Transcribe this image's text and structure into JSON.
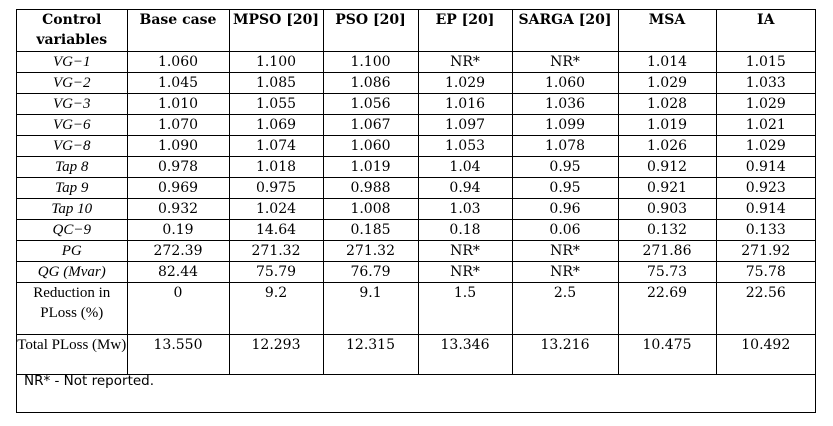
{
  "header": [
    "Control variables",
    "Base case",
    "MPSO [20]",
    "PSO [20]",
    "EP [20]",
    "SARGA [20]",
    "MSA",
    "IA"
  ],
  "rows": [
    {
      "label": "VG−1",
      "italic": true,
      "values": [
        "1.060",
        "1.100",
        "1.100",
        "NR*",
        "NR*",
        "1.014",
        "1.015"
      ]
    },
    {
      "label": "VG−2",
      "italic": true,
      "values": [
        "1.045",
        "1.085",
        "1.086",
        "1.029",
        "1.060",
        "1.029",
        "1.033"
      ]
    },
    {
      "label": "VG−3",
      "italic": true,
      "values": [
        "1.010",
        "1.055",
        "1.056",
        "1.016",
        "1.036",
        "1.028",
        "1.029"
      ]
    },
    {
      "label": "VG−6",
      "italic": true,
      "values": [
        "1.070",
        "1.069",
        "1.067",
        "1.097",
        "1.099",
        "1.019",
        "1.021"
      ]
    },
    {
      "label": "VG−8",
      "italic": true,
      "values": [
        "1.090",
        "1.074",
        "1.060",
        "1.053",
        "1.078",
        "1.026",
        "1.029"
      ]
    },
    {
      "label": "Tap 8",
      "italic": true,
      "values": [
        "0.978",
        "1.018",
        "1.019",
        "1.04",
        "0.95",
        "0.912",
        "0.914"
      ]
    },
    {
      "label": "Tap 9",
      "italic": true,
      "values": [
        "0.969",
        "0.975",
        "0.988",
        "0.94",
        "0.95",
        "0.921",
        "0.923"
      ]
    },
    {
      "label": "Tap 10",
      "italic": true,
      "values": [
        "0.932",
        "1.024",
        "1.008",
        "1.03",
        "0.96",
        "0.903",
        "0.914"
      ]
    },
    {
      "label": "QC−9",
      "italic": true,
      "values": [
        "0.19",
        "14.64",
        "0.185",
        "0.18",
        "0.06",
        "0.132",
        "0.133"
      ]
    },
    {
      "label": "PG",
      "italic": true,
      "values": [
        "272.39",
        "271.32",
        "271.32",
        "NR*",
        "NR*",
        "271.86",
        "271.92"
      ]
    },
    {
      "label": "QG (Mvar)",
      "italic": true,
      "values": [
        "82.44",
        "75.79",
        "76.79",
        "NR*",
        "NR*",
        "75.73",
        "75.78"
      ]
    },
    {
      "label": "Reduction in PLoss (%)",
      "italic": false,
      "values": [
        "0",
        "9.2",
        "9.1",
        "1.5",
        "2.5",
        "22.69",
        "22.56"
      ]
    },
    {
      "label": "Total PLoss (Mw)",
      "italic": false,
      "values": [
        "13.550",
        "12.293",
        "12.315",
        "13.346",
        "13.216",
        "10.475",
        "10.492"
      ]
    }
  ],
  "note": "NR* - Not reported."
}
